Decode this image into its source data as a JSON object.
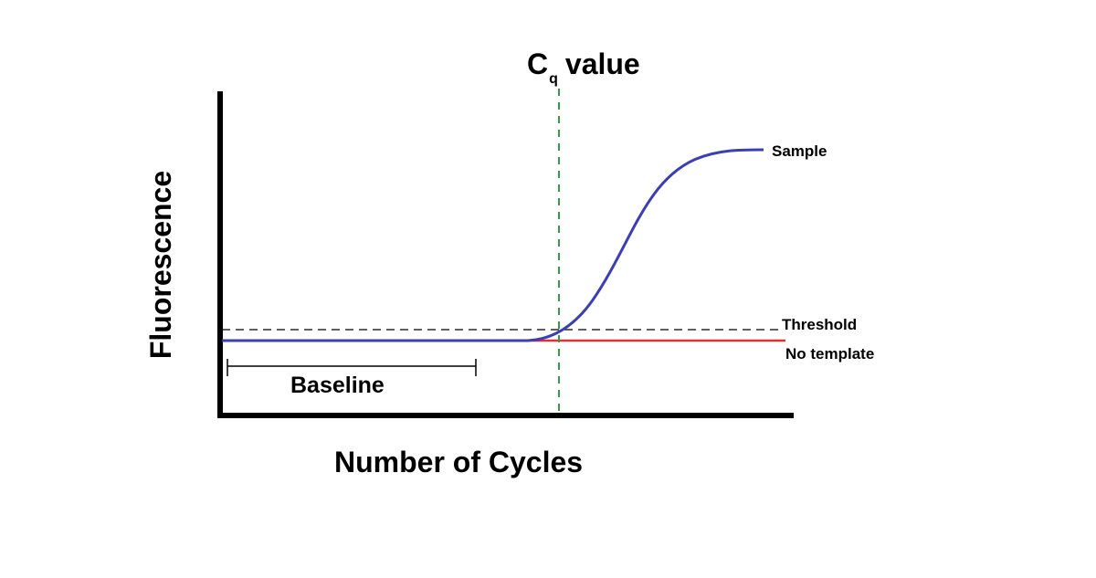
{
  "chart_data": {
    "type": "line",
    "title_main": "C",
    "title_sub": "q",
    "title_rest": "value",
    "xlabel": "Number of Cycles",
    "ylabel": "Fluorescence",
    "threshold_label": "Threshold",
    "baseline_label": "Baseline",
    "grid": false,
    "series": [
      {
        "name": "Sample",
        "color": "#3b3fb5"
      },
      {
        "name": "No template",
        "color": "#e03030"
      }
    ],
    "colors": {
      "axis": "#000000",
      "threshold": "#000000",
      "cq_line": "#2ea043"
    }
  }
}
